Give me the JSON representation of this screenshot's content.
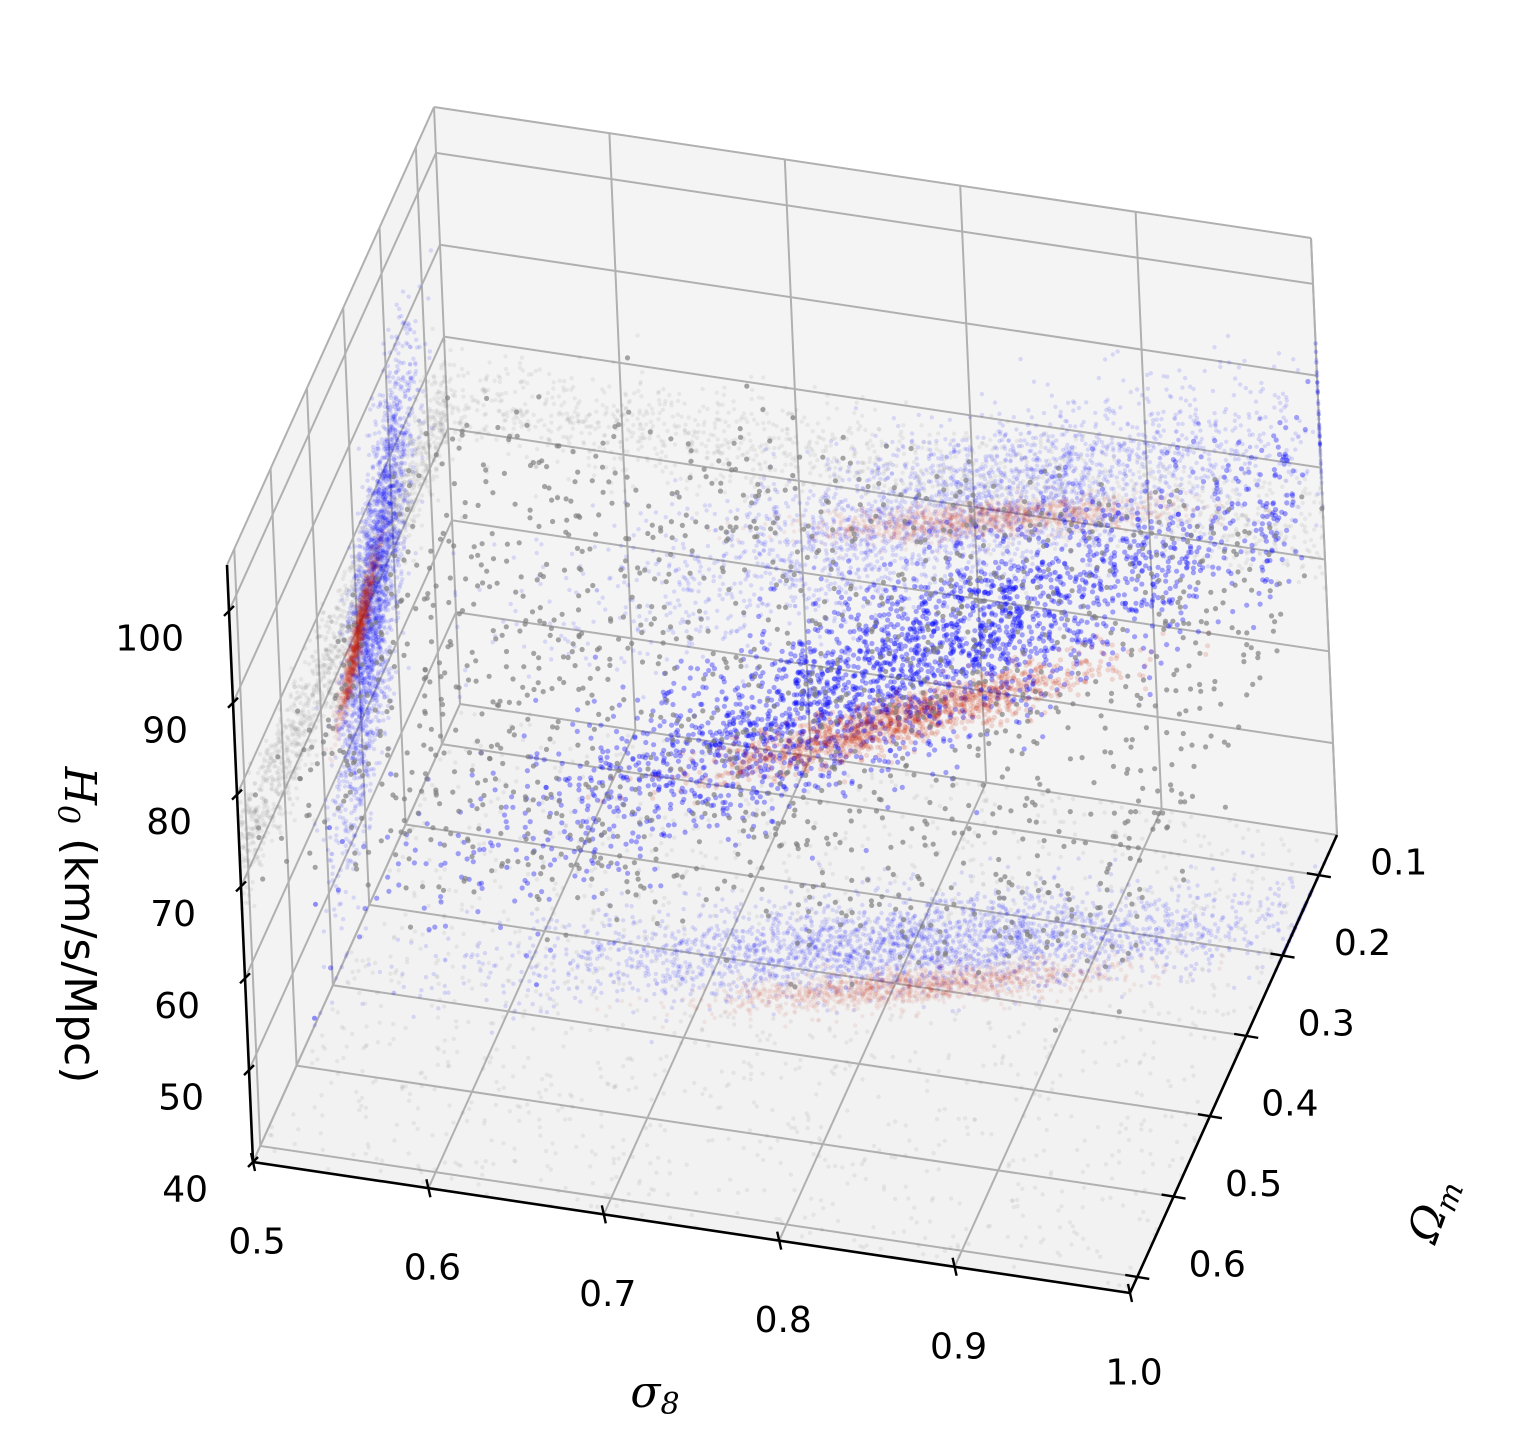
{
  "chart_data": {
    "type": "scatter",
    "dimensions": 3,
    "title": "",
    "axes": {
      "x": {
        "symbol": "σ",
        "subscript": "8",
        "range": [
          0.5,
          1.0
        ],
        "ticks": [
          0.5,
          0.6,
          0.7,
          0.8,
          0.9,
          1.0
        ],
        "tick_labels": [
          "0.5",
          "0.6",
          "0.7",
          "0.8",
          "0.9",
          "1.0"
        ]
      },
      "y": {
        "symbol": "Ω",
        "subscript": "m",
        "range": [
          0.05,
          0.62
        ],
        "ticks": [
          0.1,
          0.2,
          0.3,
          0.4,
          0.5,
          0.6
        ],
        "tick_labels": [
          "0.1",
          "0.2",
          "0.3",
          "0.4",
          "0.5",
          "0.6"
        ]
      },
      "z": {
        "symbol": "H",
        "subscript": "0",
        "unit": "(km/s/Mpc)",
        "range": [
          40,
          105
        ],
        "ticks": [
          40,
          50,
          60,
          70,
          80,
          90,
          100
        ],
        "tick_labels": [
          "40",
          "50",
          "60",
          "70",
          "80",
          "90",
          "100"
        ]
      }
    },
    "grid": true,
    "legend": "none",
    "series": [
      {
        "color": "#808080",
        "opacity": 0.7,
        "shape": "thin band at H0 ≈ 73, ~3 km/s/Mpc wide, spanning all σ8 and Ωm",
        "center_H0": 73,
        "spread_H0": 3,
        "n_points": 1400,
        "projections_shown": true
      },
      {
        "color": "#0000ff",
        "opacity": 0.35,
        "shape": "correlated cloud: H0 rises with σ8, Ωm falls with σ8",
        "relation": {
          "omega_m": "0.25 - 0.45*(σ8-0.8)",
          "H0": "70 + 75*(σ8-0.8)"
        },
        "sigma8_range": [
          0.5,
          1.0
        ],
        "n_points": 2600,
        "projections_shown": true
      },
      {
        "color": "#cc2200",
        "opacity": 0.15,
        "shape": "compact ellipsoid at σ8 ≈ 0.81, Ωm ≈ 0.30, H0 ≈ 69",
        "center": {
          "sigma8": 0.81,
          "omega_m": 0.3,
          "H0": 69
        },
        "n_points": 1300,
        "projections_shown": true
      }
    ],
    "colors": {
      "pane": "#f2f2f2",
      "grid": "#b0b0b0",
      "gray": "#808080",
      "blue": "#0000ff",
      "red": "#cc2200"
    }
  }
}
